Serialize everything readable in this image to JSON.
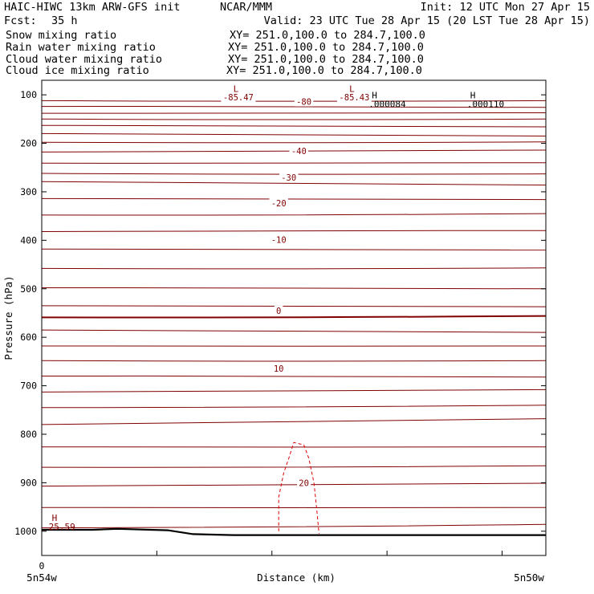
{
  "header": {
    "model": "HAIC-HIWC 13km ARW-GFS init",
    "org": "NCAR/MMM",
    "init": "Init: 12 UTC Mon 27 Apr 15",
    "fcst_label": "Fcst:",
    "fcst_value": "35 h",
    "valid": "Valid: 23 UTC Tue 28 Apr 15 (20 LST Tue 28 Apr 15)"
  },
  "fields": [
    {
      "name": "Snow mixing ratio",
      "xy": "XY= 251.0,100.0 to 284.7,100.0",
      "color": "#000000"
    },
    {
      "name": "Rain water mixing ratio",
      "xy": "XY= 251.0,100.0 to 284.7,100.0",
      "color": "#ff0000"
    },
    {
      "name": "Cloud water mixing ratio",
      "xy": "XY= 251.0,100.0 to 284.7,100.0",
      "color": "#0000cc"
    },
    {
      "name": "Cloud ice mixing ratio",
      "xy": "XY= 251.0,100.0 to 284.7,100.0",
      "color": "#000000"
    }
  ],
  "chart_data": {
    "type": "line",
    "ylabel": "Pressure (hPa)",
    "xlabel": "Distance (km)",
    "x_left_label": "5n54w",
    "x_right_label": "5n50w",
    "x_zero_label": "0",
    "yticks": [
      100,
      200,
      300,
      400,
      500,
      600,
      700,
      800,
      900,
      1000
    ],
    "ylim": [
      70,
      1050
    ],
    "xlim": [
      0,
      1
    ],
    "colors": {
      "isotherm": "#800000",
      "rain": "#dd0000",
      "terrain": "#000000"
    },
    "isotherms_hPa_left_right": [
      [
        112,
        112
      ],
      [
        124,
        126
      ],
      [
        138,
        137
      ],
      [
        150,
        150
      ],
      [
        163,
        166
      ],
      [
        180,
        185
      ],
      [
        198,
        197
      ],
      [
        218,
        214
      ],
      [
        241,
        240
      ],
      [
        262,
        263
      ],
      [
        279,
        286
      ],
      [
        314,
        316
      ],
      [
        348,
        345
      ],
      [
        382,
        380
      ],
      [
        418,
        420
      ],
      [
        458,
        457
      ],
      [
        498,
        500
      ],
      [
        535,
        537
      ],
      [
        559,
        556
      ],
      [
        585,
        590
      ],
      [
        618,
        618
      ],
      [
        648,
        648
      ],
      [
        680,
        682
      ],
      [
        713,
        708
      ],
      [
        745,
        740
      ],
      [
        780,
        768
      ],
      [
        826,
        826
      ],
      [
        868,
        865
      ],
      [
        907,
        901
      ],
      [
        951,
        951
      ],
      [
        993,
        986
      ]
    ],
    "contour_labels": [
      {
        "text": "-85.47",
        "x": 0.39,
        "p": 105
      },
      {
        "text": "-80",
        "x": 0.52,
        "p": 114
      },
      {
        "text": "-85.43",
        "x": 0.62,
        "p": 105
      },
      {
        "text": "-40",
        "x": 0.51,
        "p": 216
      },
      {
        "text": "-30",
        "x": 0.49,
        "p": 270
      },
      {
        "text": "-20",
        "x": 0.47,
        "p": 323
      },
      {
        "text": "-10",
        "x": 0.47,
        "p": 399
      },
      {
        "text": "0",
        "x": 0.47,
        "p": 545
      },
      {
        "text": "10",
        "x": 0.47,
        "p": 664
      },
      {
        "text": "20",
        "x": 0.52,
        "p": 900
      }
    ],
    "extrema": [
      {
        "symbol": "L",
        "value": "",
        "x": 0.38,
        "p": 94
      },
      {
        "symbol": "L",
        "value": "",
        "x": 0.61,
        "p": 94
      },
      {
        "symbol": "H",
        "value": ".000084",
        "x": 0.655,
        "p": 107
      },
      {
        "symbol": "H",
        "value": ".000110",
        "x": 0.85,
        "p": 107
      },
      {
        "symbol": "H",
        "value": "25.59",
        "x": 0.02,
        "p": 979
      }
    ],
    "rain_contour": [
      [
        0.47,
        1000
      ],
      [
        0.47,
        930
      ],
      [
        0.48,
        880
      ],
      [
        0.49,
        850
      ],
      [
        0.5,
        817
      ],
      [
        0.52,
        822
      ],
      [
        0.53,
        850
      ],
      [
        0.54,
        900
      ],
      [
        0.545,
        950
      ],
      [
        0.55,
        1005
      ]
    ],
    "terrain_hPa": [
      [
        0.0,
        997
      ],
      [
        0.1,
        997
      ],
      [
        0.15,
        995
      ],
      [
        0.25,
        998
      ],
      [
        0.3,
        1006
      ],
      [
        0.38,
        1008
      ],
      [
        0.5,
        1008
      ],
      [
        0.75,
        1008
      ],
      [
        1.0,
        1008
      ]
    ]
  }
}
